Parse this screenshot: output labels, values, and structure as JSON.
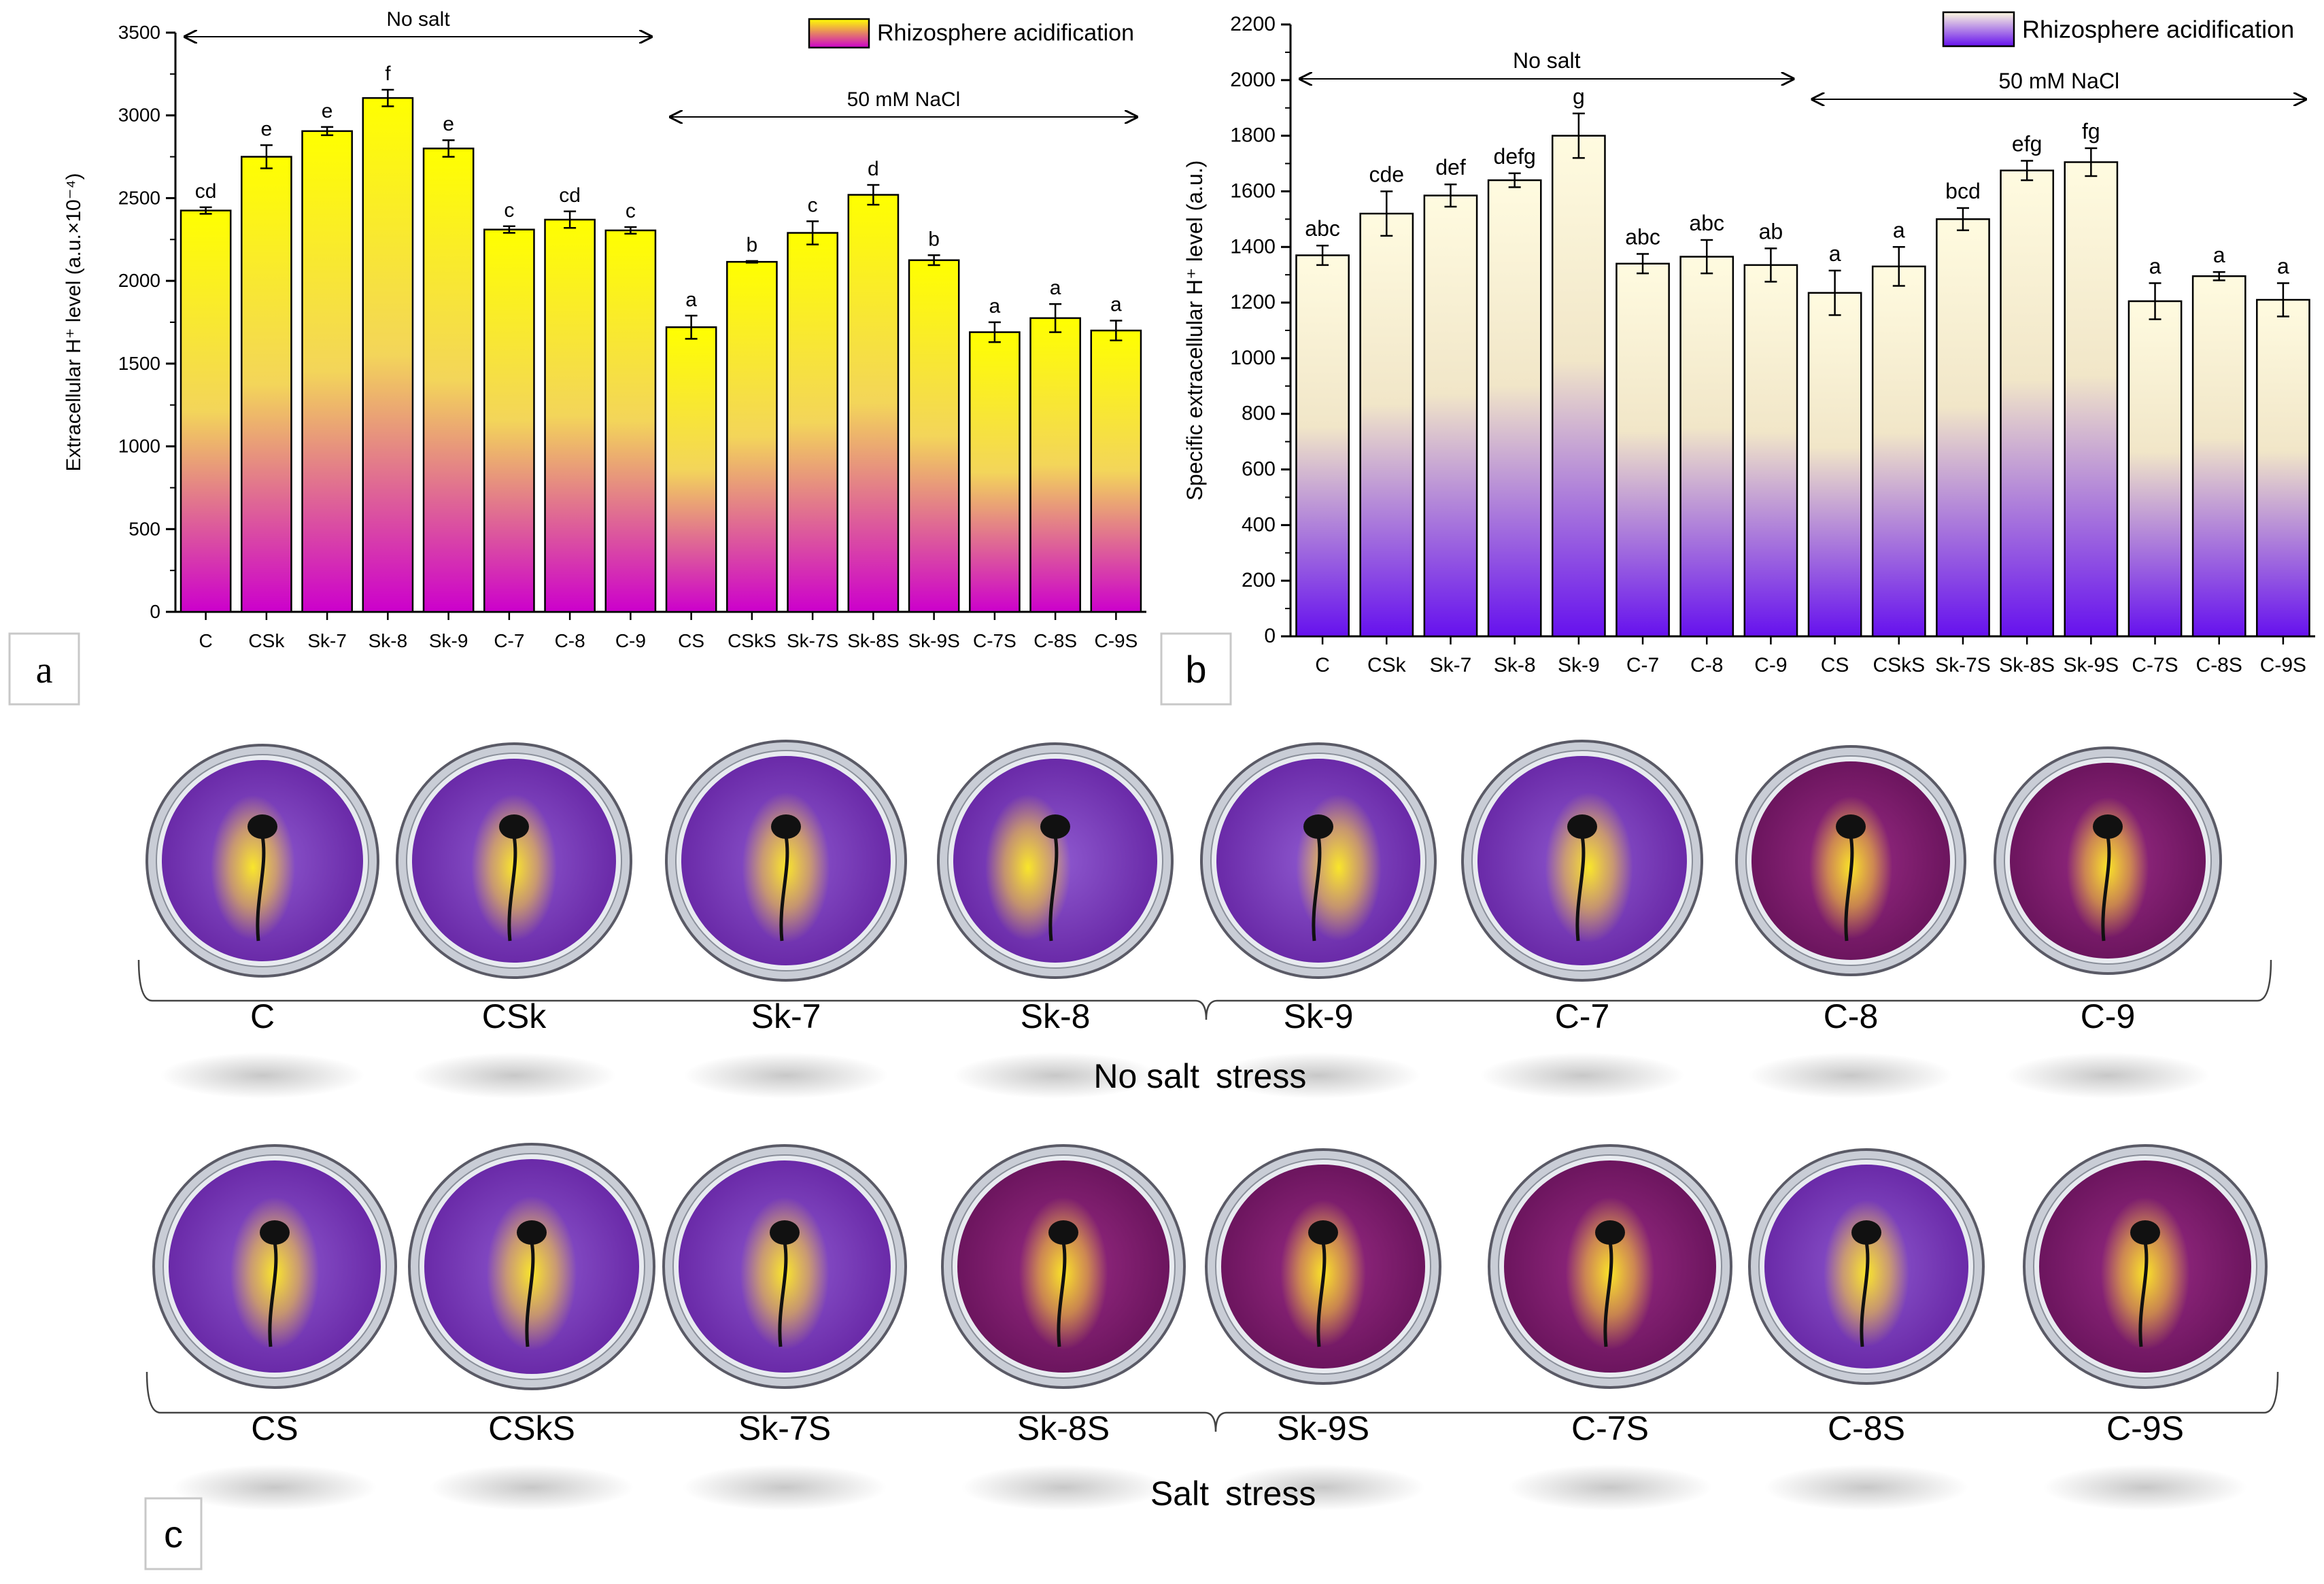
{
  "panels": {
    "a": "a",
    "b": "b",
    "c": "c"
  },
  "colors": {
    "panel_a_top": "#ffff00",
    "panel_a_bottom": "#cc00cc",
    "panel_b_top": "#fffbe0",
    "panel_b_bottom": "#6611ee",
    "plate_purple": "#7a3ab5",
    "plate_magenta": "#8a1c78",
    "acid_yellow": "#ffe400"
  },
  "chart_data": [
    {
      "type": "bar",
      "panel": "a",
      "ylabel": "Extracellular H⁺ level (a.u.×10⁻⁴)",
      "ylim": [
        0,
        3500
      ],
      "yticks": [
        0,
        500,
        1000,
        1500,
        2000,
        2500,
        3000,
        3500
      ],
      "legend": "Rhizosphere acidification",
      "legend_position": "top-right",
      "categories": [
        "C",
        "CSk",
        "Sk-7",
        "Sk-8",
        "Sk-9",
        "C-7",
        "C-8",
        "C-9",
        "CS",
        "CSkS",
        "Sk-7S",
        "Sk-8S",
        "Sk-9S",
        "C-7S",
        "C-8S",
        "C-9S"
      ],
      "values": [
        2425,
        2750,
        2905,
        3105,
        2800,
        2310,
        2370,
        2305,
        1720,
        2115,
        2290,
        2520,
        2125,
        1690,
        1775,
        1700
      ],
      "errors": [
        20,
        70,
        25,
        50,
        50,
        20,
        50,
        20,
        70,
        5,
        70,
        60,
        30,
        60,
        85,
        60
      ],
      "letters": [
        "cd",
        "e",
        "e",
        "f",
        "e",
        "c",
        "cd",
        "c",
        "a",
        "b",
        "c",
        "d",
        "b",
        "a",
        "a",
        "a"
      ],
      "annotations": [
        {
          "text": "No salt",
          "from": 0,
          "to": 7
        },
        {
          "text": "50 mM NaCl",
          "from": 8,
          "to": 15
        }
      ]
    },
    {
      "type": "bar",
      "panel": "b",
      "ylabel": "Specific extracellular H⁺ level (a.u.)",
      "ylim": [
        0,
        2200
      ],
      "yticks": [
        0,
        200,
        400,
        600,
        800,
        1000,
        1200,
        1400,
        1600,
        1800,
        2000,
        2200
      ],
      "legend": "Rhizosphere acidification",
      "legend_position": "top-right",
      "categories": [
        "C",
        "CSk",
        "Sk-7",
        "Sk-8",
        "Sk-9",
        "C-7",
        "C-8",
        "C-9",
        "CS",
        "CSkS",
        "Sk-7S",
        "Sk-8S",
        "Sk-9S",
        "C-7S",
        "C-8S",
        "C-9S"
      ],
      "values": [
        1370,
        1520,
        1585,
        1640,
        1800,
        1340,
        1365,
        1335,
        1235,
        1330,
        1500,
        1675,
        1705,
        1205,
        1295,
        1210
      ],
      "errors": [
        35,
        80,
        40,
        25,
        80,
        35,
        60,
        60,
        80,
        70,
        40,
        35,
        50,
        65,
        15,
        60
      ],
      "letters": [
        "abc",
        "cde",
        "def",
        "defg",
        "g",
        "abc",
        "abc",
        "ab",
        "a",
        "a",
        "bcd",
        "efg",
        "fg",
        "a",
        "a",
        "a"
      ],
      "annotations": [
        {
          "text": "No salt",
          "from": 0,
          "to": 7
        },
        {
          "text": "50 mM NaCl",
          "from": 8,
          "to": 15
        }
      ]
    }
  ],
  "photos": {
    "row1": {
      "labels": [
        "C",
        "CSk",
        "Sk-7",
        "Sk-8",
        "Sk-9",
        "C-7",
        "C-8",
        "C-9"
      ],
      "group_label_left": "No salt",
      "group_label_right": "stress"
    },
    "row2": {
      "labels": [
        "CS",
        "CSkS",
        "Sk-7S",
        "Sk-8S",
        "Sk-9S",
        "C-7S",
        "C-8S",
        "C-9S"
      ],
      "group_label_left": "Salt",
      "group_label_right": "stress"
    }
  }
}
